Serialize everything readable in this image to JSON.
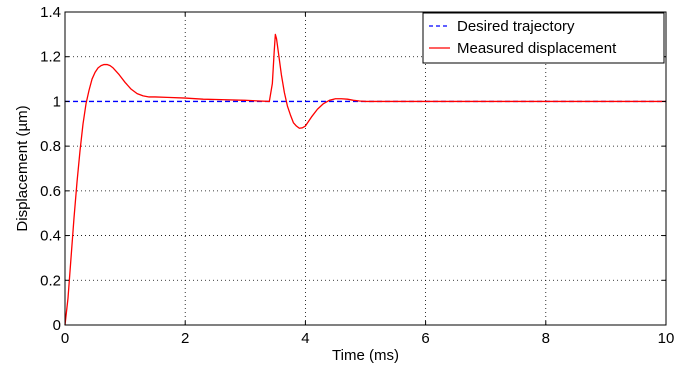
{
  "chart_data": {
    "type": "line",
    "title": "",
    "xlabel": "Time (ms)",
    "ylabel": "Displacement (µm)",
    "xlim": [
      0,
      10
    ],
    "ylim": [
      0,
      1.4
    ],
    "xticks": [
      0,
      2,
      4,
      6,
      8,
      10
    ],
    "yticks": [
      0,
      0.2,
      0.4,
      0.6,
      0.8,
      1,
      1.2,
      1.4
    ],
    "xtick_labels": [
      "0",
      "2",
      "4",
      "6",
      "8",
      "10"
    ],
    "ytick_labels": [
      "0",
      "0.2",
      "0.4",
      "0.6",
      "0.8",
      "1",
      "1.2",
      "1.4"
    ],
    "grid": true,
    "legend_position": "top-right",
    "series": [
      {
        "name": "Desired trajectory",
        "color": "#0000ff",
        "style": "dashed",
        "x": [
          0,
          10
        ],
        "y": [
          1,
          1
        ]
      },
      {
        "name": "Measured displacement",
        "color": "#ff0000",
        "style": "solid",
        "x": [
          0,
          0.05,
          0.1,
          0.15,
          0.2,
          0.25,
          0.3,
          0.35,
          0.4,
          0.45,
          0.5,
          0.55,
          0.6,
          0.65,
          0.7,
          0.75,
          0.8,
          0.9,
          1.0,
          1.1,
          1.2,
          1.3,
          1.4,
          1.5,
          1.7,
          2.0,
          2.3,
          2.6,
          3.0,
          3.4,
          3.45,
          3.48,
          3.5,
          3.52,
          3.55,
          3.6,
          3.65,
          3.7,
          3.75,
          3.8,
          3.85,
          3.9,
          3.95,
          4.0,
          4.1,
          4.2,
          4.3,
          4.4,
          4.5,
          4.6,
          4.7,
          4.8,
          4.9,
          5.0,
          5.2,
          5.5,
          6.0,
          7.0,
          8.0,
          9.0,
          10.0
        ],
        "y": [
          0,
          0.12,
          0.3,
          0.48,
          0.64,
          0.78,
          0.9,
          0.99,
          1.05,
          1.1,
          1.13,
          1.15,
          1.16,
          1.165,
          1.165,
          1.16,
          1.15,
          1.12,
          1.085,
          1.055,
          1.035,
          1.025,
          1.02,
          1.02,
          1.018,
          1.015,
          1.01,
          1.008,
          1.005,
          1.0,
          1.08,
          1.22,
          1.3,
          1.28,
          1.22,
          1.12,
          1.04,
          0.98,
          0.94,
          0.905,
          0.89,
          0.88,
          0.882,
          0.89,
          0.93,
          0.965,
          0.99,
          1.005,
          1.012,
          1.012,
          1.01,
          1.005,
          1.002,
          1.0,
          1.0,
          1.0,
          1.0,
          1.0,
          1.0,
          1.0,
          1.0
        ]
      }
    ]
  }
}
